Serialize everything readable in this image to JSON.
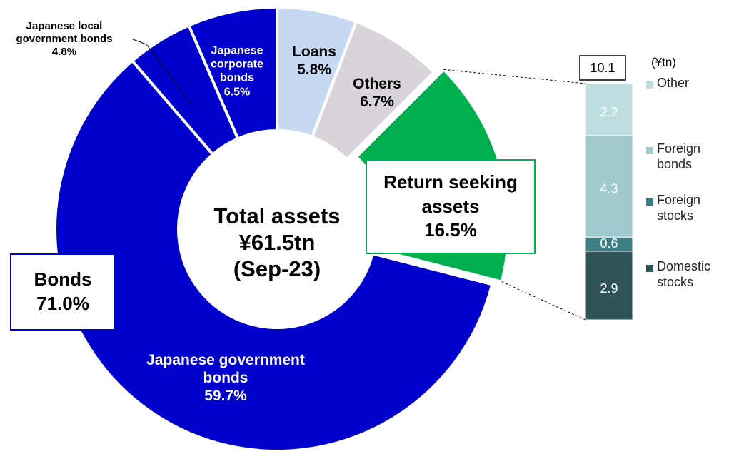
{
  "chart_data": [
    {
      "type": "donut",
      "categories": [
        "Loans",
        "Others",
        "Return seeking assets",
        "Japanese government bonds",
        "Japanese local government bonds",
        "Japanese corporate bonds"
      ],
      "values": [
        5.8,
        6.7,
        16.5,
        59.7,
        4.8,
        6.5
      ],
      "value_labels": [
        "5.8%",
        "6.7%",
        "16.5%",
        "59.7%",
        "4.8%",
        "6.5%"
      ],
      "colors": [
        "#c6d9f1",
        "#d9d4da",
        "#00b050",
        "#0000cc",
        "#0000cc",
        "#0000cc"
      ],
      "exploded": "Return seeking assets",
      "center_text": [
        "Total assets",
        "¥61.5tn",
        "(Sep-23)"
      ],
      "annotations": [
        {
          "text": "Bonds",
          "value_label": "71.0%"
        }
      ]
    },
    {
      "type": "stacked_bar",
      "unit": "(¥tn)",
      "total": 10.1,
      "series": [
        {
          "name": "Domestic stocks",
          "color": "#2e545a",
          "values": [
            2.9
          ]
        },
        {
          "name": "Foreign stocks",
          "color": "#3e7f86",
          "values": [
            0.6
          ]
        },
        {
          "name": "Foreign bonds",
          "color": "#9fc8cf",
          "values": [
            4.3
          ]
        },
        {
          "name": "Other",
          "color": "#bddde0",
          "values": [
            2.2
          ]
        }
      ]
    }
  ]
}
